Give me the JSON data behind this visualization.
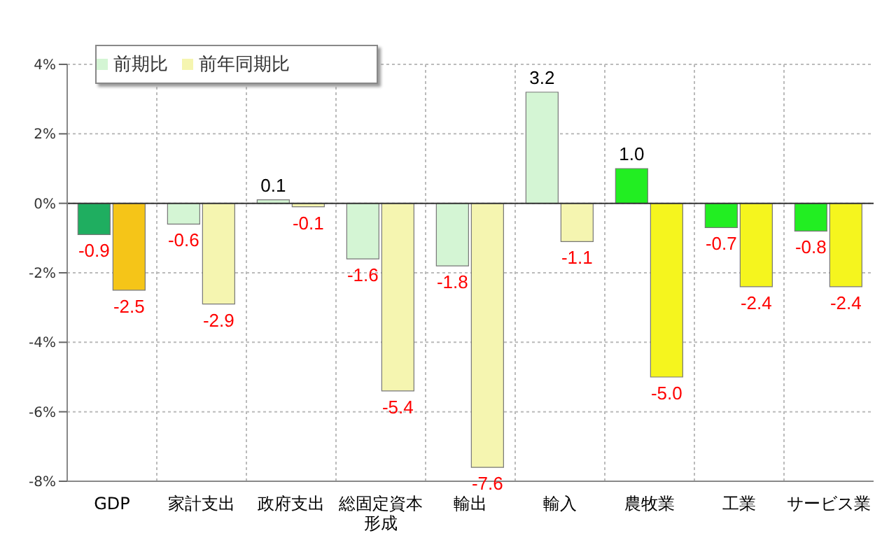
{
  "chart_data": {
    "type": "bar",
    "categories": [
      "GDP",
      "家計支出",
      "政府支出",
      "総固定資本形成",
      "輸出",
      "輸入",
      "農牧業",
      "工業",
      "サービス業"
    ],
    "series": [
      {
        "name": "前期比",
        "color": "#d4f5d4",
        "colors": [
          "#1fae60",
          "#d4f5d4",
          "#d4f5d4",
          "#d4f5d4",
          "#d4f5d4",
          "#d4f5d4",
          "#22ee22",
          "#22ee22",
          "#22ee22"
        ],
        "values": [
          -0.9,
          -0.6,
          0.1,
          -1.6,
          -1.8,
          3.2,
          1.0,
          -0.7,
          -0.8
        ],
        "value_labels": [
          "-0.9",
          "-0.6",
          "0.1",
          "-1.6",
          "-1.8",
          "3.2",
          "1.0",
          "-0.7",
          "-0.8"
        ]
      },
      {
        "name": "前年同期比",
        "color": "#f5f5b0",
        "colors": [
          "#f5c518",
          "#f5f5b0",
          "#f5f5b0",
          "#f5f5b0",
          "#f5f5b0",
          "#f5f5b0",
          "#f5f51e",
          "#f5f51e",
          "#f5f51e"
        ],
        "values": [
          -2.5,
          -2.9,
          -0.1,
          -5.4,
          -7.6,
          -1.1,
          -5.0,
          -2.4,
          -2.4
        ],
        "value_labels": [
          "-2.5",
          "-2.9",
          "-0.1",
          "-5.4",
          "-7.6",
          "-1.1",
          "-5.0",
          "-2.4",
          "-2.4"
        ]
      }
    ],
    "ylim": [
      -8,
      4
    ],
    "yticks": [
      {
        "value": -8,
        "label": "-8%"
      },
      {
        "value": -6,
        "label": "-6%"
      },
      {
        "value": -4,
        "label": "-4%"
      },
      {
        "value": -2,
        "label": "-2%"
      },
      {
        "value": 0,
        "label": "0%"
      },
      {
        "value": 2,
        "label": "2%"
      },
      {
        "value": 4,
        "label": "4%"
      }
    ],
    "grid": true,
    "legend": "top left"
  }
}
